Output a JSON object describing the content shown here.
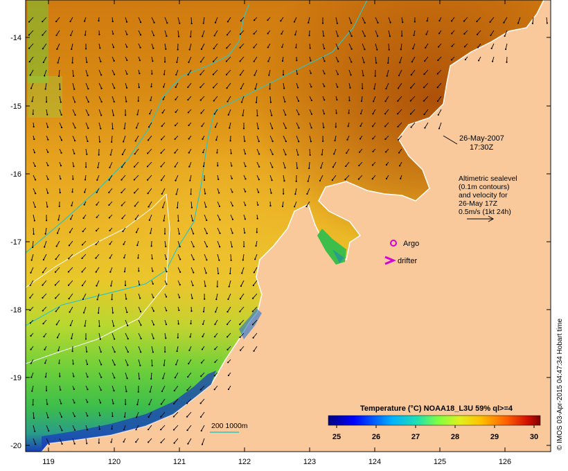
{
  "map": {
    "x_ticks": [
      "119",
      "120",
      "121",
      "122",
      "123",
      "124",
      "125",
      "126"
    ],
    "y_ticks": [
      "-14",
      "-15",
      "-16",
      "-17",
      "-18",
      "-19",
      "-20"
    ]
  },
  "annotation": {
    "date": "26-May-2007",
    "time": "17:30Z",
    "legend_lines": [
      "Altimetric sealevel",
      "(0.1m contours)",
      "and velocity for",
      "26-May 17Z",
      "0.5m/s (1kt 24h)"
    ]
  },
  "markers": {
    "argo_label": "Argo",
    "drifter_label": "drifter"
  },
  "isobath_label": "200  1000m",
  "colorbar": {
    "title": "Temperature (°C) NOAA18_L3U 59% ql>=4",
    "ticks": [
      "25",
      "26",
      "27",
      "28",
      "29",
      "30"
    ]
  },
  "credit": "© IMOS 03-Apr-2015 04:47:34 Hobart time",
  "colors": {
    "land": "#f9c99c",
    "isobath": "#2ec4c4",
    "argo": "#d400d4",
    "drifter": "#d400d4"
  }
}
